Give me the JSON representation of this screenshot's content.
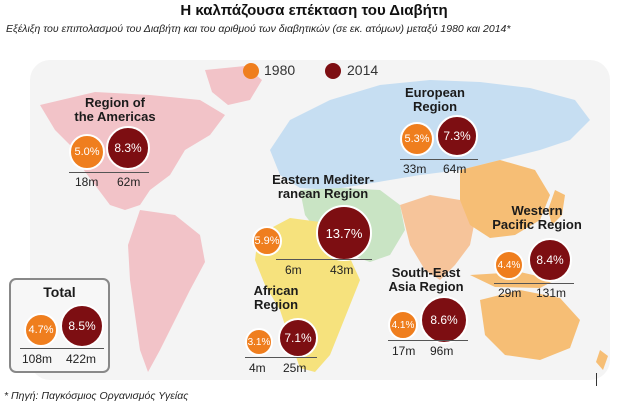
{
  "title": "Η καλπάζουσα επέκταση του Διαβήτη",
  "subtitle": "Εξέλιξη του επιπολασμού του Διαβήτη και του αριθμού των διαβητικών (σε εκ. ατόμων) μεταξύ 1980 και 2014*",
  "source": "* Πηγή: Παγκόσμιος Οργανισμός Υγείας",
  "legend": {
    "year1": "1980",
    "year2": "2014",
    "color1": "#ef7e1e",
    "color2": "#7d0e12"
  },
  "regions": {
    "americas": {
      "name_line1": "Region of",
      "name_line2": "the Americas",
      "p1980": "5.0%",
      "p2014": "8.3%",
      "n1980": "18m",
      "n2014": "62m"
    },
    "europe": {
      "name_line1": "European",
      "name_line2": "Region",
      "p1980": "5.3%",
      "p2014": "7.3%",
      "n1980": "33m",
      "n2014": "64m"
    },
    "eastern_med": {
      "name_line1": "Eastern Mediter-",
      "name_line2": "ranean Region",
      "p1980": "5.9%",
      "p2014": "13.7%",
      "n1980": "6m",
      "n2014": "43m"
    },
    "western_pacific": {
      "name_line1": "Western",
      "name_line2": "Pacific Region",
      "p1980": "4.4%",
      "p2014": "8.4%",
      "n1980": "29m",
      "n2014": "131m"
    },
    "african": {
      "name_line1": "African",
      "name_line2": "Region",
      "p1980": "3.1%",
      "p2014": "7.1%",
      "n1980": "4m",
      "n2014": "25m"
    },
    "south_east_asia": {
      "name_line1": "South-East",
      "name_line2": "Asia Region",
      "p1980": "4.1%",
      "p2014": "8.6%",
      "n1980": "17m",
      "n2014": "96m"
    },
    "total": {
      "name": "Total",
      "p1980": "4.7%",
      "p2014": "8.5%",
      "n1980": "108m",
      "n2014": "422m"
    }
  },
  "map_colors": {
    "americas": "#f2c3c8",
    "europe": "#c6def2",
    "eastern_med": "#c9e4c4",
    "african": "#f6e27d",
    "south_east_asia": "#f6c49a",
    "western_pacific": "#f6be75",
    "background": "#f1f1f1"
  }
}
